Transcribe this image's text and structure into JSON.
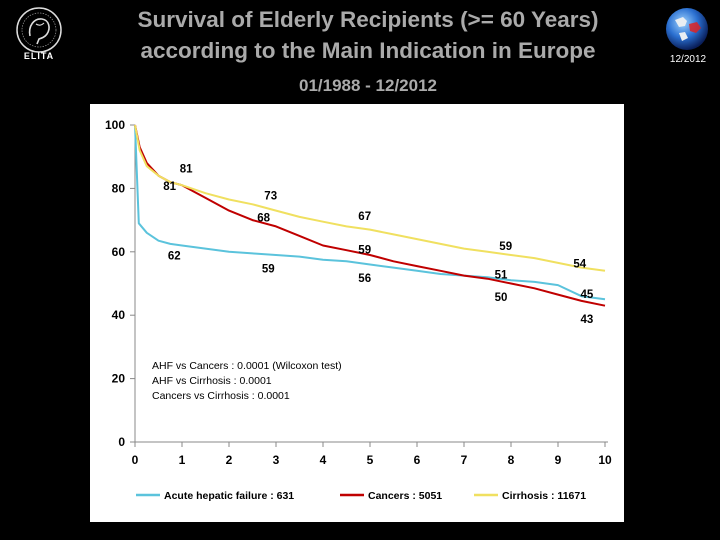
{
  "header": {
    "title_line1": "Survival of Elderly Recipients (>= 60 Years)",
    "title_line2": "according to the Main Indication in Europe",
    "subtitle": "01/1988 - 12/2012",
    "logo_text": "ELITA",
    "date_badge": "12/2012"
  },
  "colors": {
    "acute": "#5bc3dc",
    "cancers": "#c00000",
    "cirrhosis": "#f0e060"
  },
  "chart_data": {
    "type": "line",
    "xlabel": "",
    "ylabel": "",
    "xlim": [
      0,
      10
    ],
    "ylim": [
      0,
      100
    ],
    "x_ticks": [
      "0",
      "1",
      "2",
      "3",
      "4",
      "5",
      "6",
      "7",
      "8",
      "9",
      "10"
    ],
    "y_ticks": [
      "0",
      "20",
      "40",
      "60",
      "80",
      "100"
    ],
    "series": [
      {
        "name": "Acute hepatic failure : 631",
        "key": "acute",
        "x": [
          0,
          0.08,
          0.25,
          0.5,
          0.75,
          1,
          1.5,
          2,
          2.5,
          3,
          3.5,
          4,
          4.5,
          5,
          5.5,
          6,
          6.5,
          7,
          7.5,
          8,
          8.5,
          9,
          9.5,
          10
        ],
        "y": [
          100,
          69,
          66,
          63.5,
          62.5,
          62,
          61,
          60,
          59.5,
          59,
          58.5,
          57.5,
          57,
          56,
          55,
          54,
          53,
          52.5,
          52,
          51,
          50.5,
          49.5,
          46,
          45
        ]
      },
      {
        "name": "Cancers : 5051",
        "key": "cancers",
        "x": [
          0,
          0.1,
          0.25,
          0.5,
          0.75,
          1,
          1.5,
          2,
          2.5,
          3,
          3.5,
          4,
          4.5,
          5,
          5.5,
          6,
          6.5,
          7,
          7.5,
          8,
          8.5,
          9,
          9.5,
          10
        ],
        "y": [
          100,
          93,
          88,
          84,
          82,
          81,
          77,
          73,
          70,
          68,
          65,
          62,
          60.5,
          59,
          57,
          55.5,
          54,
          52.5,
          51.5,
          50,
          48.5,
          46.5,
          44.5,
          43
        ]
      },
      {
        "name": "Cirrhosis : 11671",
        "key": "cirrhosis",
        "x": [
          0,
          0.1,
          0.25,
          0.5,
          0.75,
          1,
          1.5,
          2,
          2.5,
          3,
          3.5,
          4,
          4.5,
          5,
          5.5,
          6,
          6.5,
          7,
          7.5,
          8,
          8.5,
          9,
          9.5,
          10
        ],
        "y": [
          100,
          92,
          87,
          84,
          82,
          81,
          78.5,
          76.5,
          75,
          73,
          71,
          69.5,
          68,
          67,
          65.5,
          64,
          62.5,
          61,
          60,
          59,
          58,
          56.5,
          55,
          54
        ]
      }
    ],
    "data_labels": [
      {
        "text": "81",
        "x": 0.95,
        "y": 85,
        "anchor": "start"
      },
      {
        "text": "81",
        "x": 0.6,
        "y": 79.5,
        "anchor": "start"
      },
      {
        "text": "73",
        "x": 2.75,
        "y": 76.5,
        "anchor": "start"
      },
      {
        "text": "68",
        "x": 2.6,
        "y": 69.5,
        "anchor": "start"
      },
      {
        "text": "67",
        "x": 4.75,
        "y": 70,
        "anchor": "start"
      },
      {
        "text": "59",
        "x": 4.75,
        "y": 59.5,
        "anchor": "start"
      },
      {
        "text": "62",
        "x": 0.7,
        "y": 57.5,
        "anchor": "start"
      },
      {
        "text": "59",
        "x": 2.7,
        "y": 53.5,
        "anchor": "start"
      },
      {
        "text": "56",
        "x": 4.75,
        "y": 50.5,
        "anchor": "start"
      },
      {
        "text": "59",
        "x": 7.75,
        "y": 60.5,
        "anchor": "start"
      },
      {
        "text": "51",
        "x": 7.65,
        "y": 51.5,
        "anchor": "start"
      },
      {
        "text": "50",
        "x": 7.65,
        "y": 44.5,
        "anchor": "start"
      },
      {
        "text": "54",
        "x": 9.6,
        "y": 55,
        "anchor": "end"
      },
      {
        "text": "45",
        "x": 9.75,
        "y": 45.5,
        "anchor": "end"
      },
      {
        "text": "43",
        "x": 9.75,
        "y": 37.5,
        "anchor": "end"
      }
    ],
    "annotations": [
      "AHF vs Cancers : 0.0001 (Wilcoxon test)",
      "AHF vs Cirrhosis : 0.0001",
      "Cancers vs Cirrhosis : 0.0001"
    ],
    "legend": [
      {
        "label": "Acute hepatic failure : 631",
        "key": "acute"
      },
      {
        "label": "Cancers : 5051",
        "key": "cancers"
      },
      {
        "label": "Cirrhosis : 11671",
        "key": "cirrhosis"
      }
    ],
    "legend_position": "bottom",
    "grid": false
  }
}
